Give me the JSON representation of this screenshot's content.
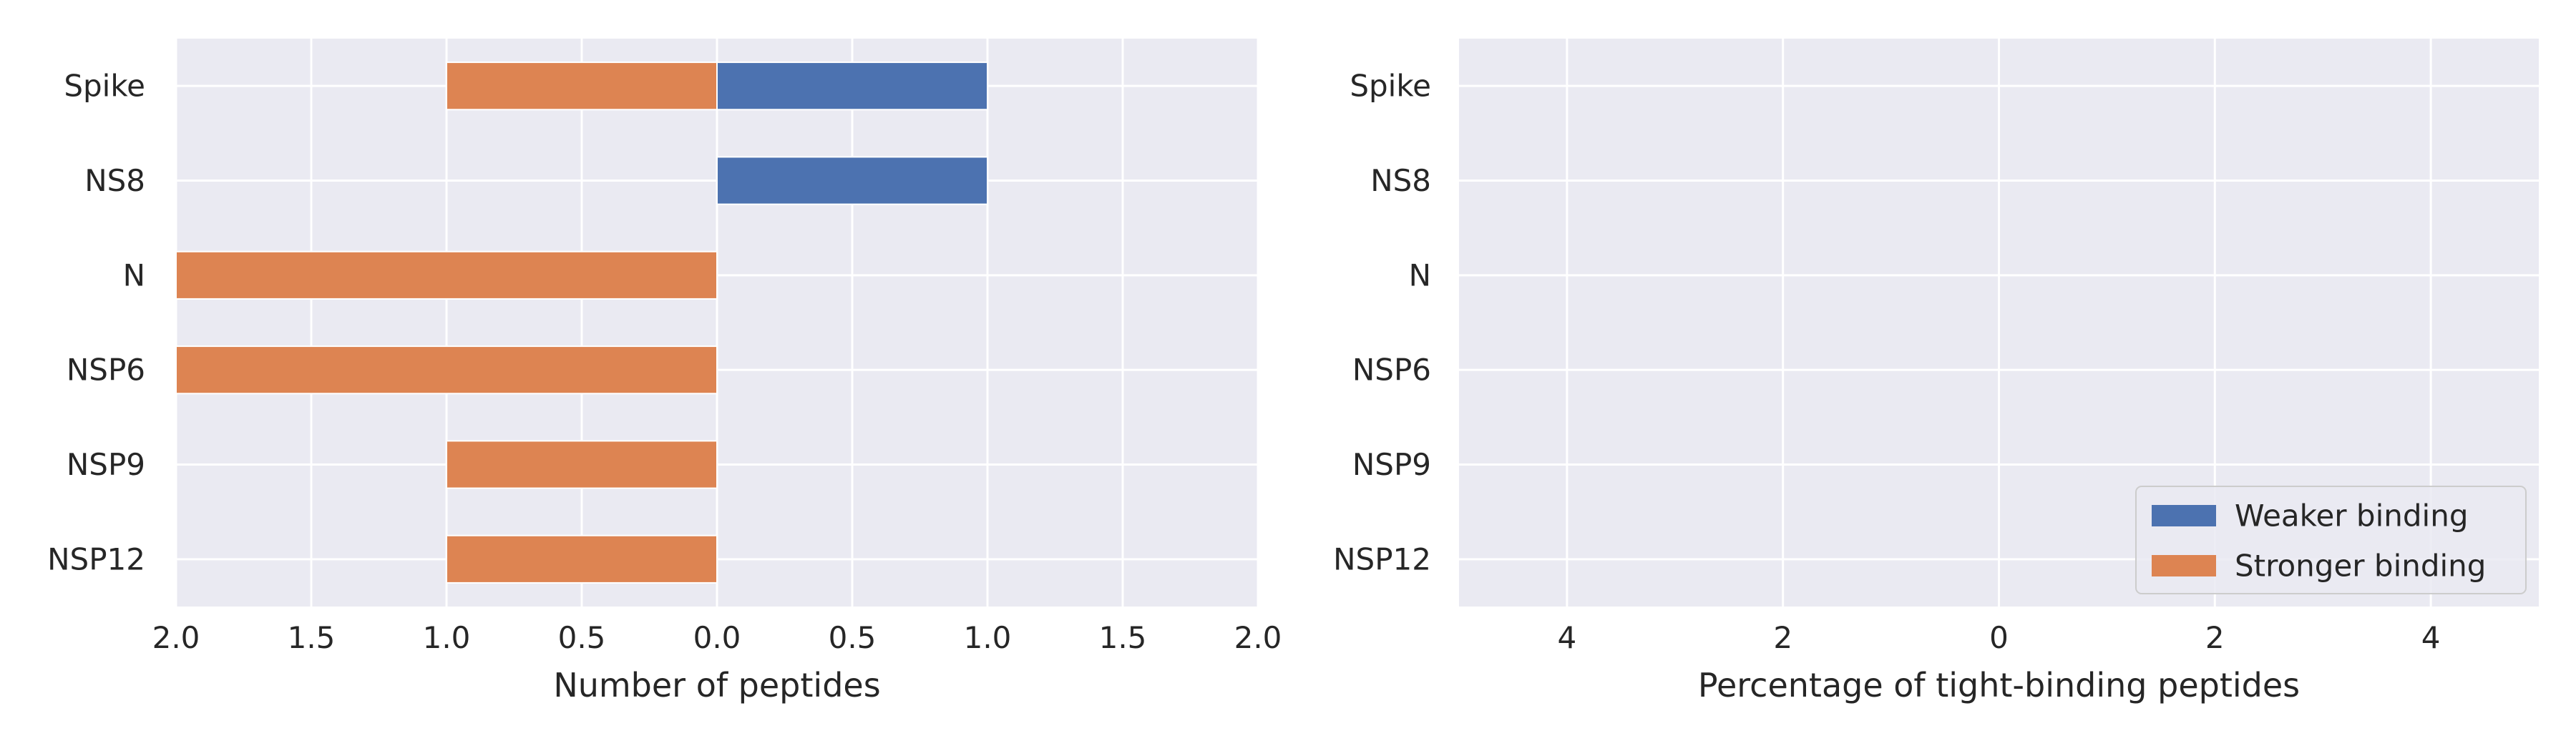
{
  "chart_data": [
    {
      "type": "bar",
      "orientation": "horizontal-diverging",
      "categories": [
        "Spike",
        "NS8",
        "N",
        "NSP6",
        "NSP9",
        "NSP12"
      ],
      "series": [
        {
          "name": "Weaker binding",
          "values": [
            1,
            1,
            0,
            0,
            0,
            0
          ],
          "color": "#4c72b0",
          "direction": "right"
        },
        {
          "name": "Stronger binding",
          "values": [
            1,
            0,
            2,
            2,
            1,
            1
          ],
          "color": "#dd8452",
          "direction": "left"
        }
      ],
      "xlabel": "Number of peptides",
      "xlim": [
        -2,
        2
      ],
      "xticks": [
        -2,
        -1.5,
        -1,
        -0.5,
        0,
        0.5,
        1,
        1.5,
        2
      ],
      "xtick_labels": [
        "2.0",
        "1.5",
        "1.0",
        "0.5",
        "0.0",
        "0.5",
        "1.0",
        "1.5",
        "2.0"
      ],
      "grid": true,
      "background": "#eaeaf2"
    },
    {
      "type": "bar",
      "orientation": "horizontal-diverging",
      "categories": [
        "Spike",
        "NS8",
        "N",
        "NSP6",
        "NSP9",
        "NSP12"
      ],
      "series": [
        {
          "name": "Weaker binding",
          "values": [
            0,
            0,
            0,
            0,
            0,
            0
          ],
          "color": "#4c72b0",
          "direction": "right"
        },
        {
          "name": "Stronger binding",
          "values": [
            0,
            0,
            0,
            0,
            0,
            0
          ],
          "color": "#dd8452",
          "direction": "left"
        }
      ],
      "xlabel": "Percentage of tight-binding peptides",
      "xlim": [
        -5,
        5
      ],
      "xticks": [
        -4,
        -2,
        0,
        2,
        4
      ],
      "xtick_labels": [
        "4",
        "2",
        "0",
        "2",
        "4"
      ],
      "grid": true,
      "background": "#eaeaf2",
      "legend": {
        "placement": "lower-right",
        "entries": [
          {
            "label": "Weaker binding",
            "color": "#4c72b0"
          },
          {
            "label": "Stronger binding",
            "color": "#dd8452"
          }
        ]
      }
    }
  ]
}
